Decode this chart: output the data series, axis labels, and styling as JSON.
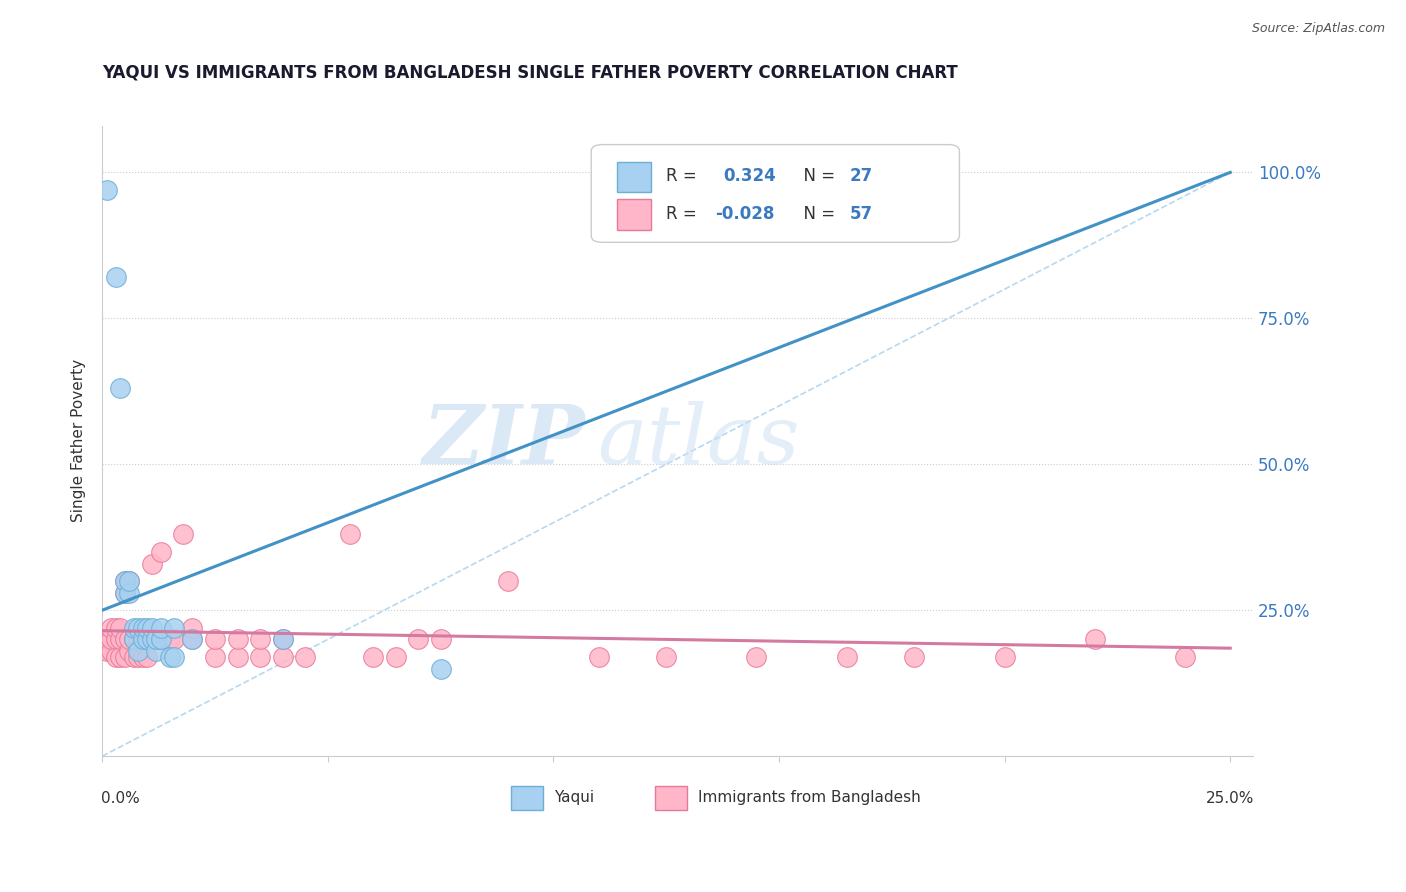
{
  "title": "YAQUI VS IMMIGRANTS FROM BANGLADESH SINGLE FATHER POVERTY CORRELATION CHART",
  "source": "Source: ZipAtlas.com",
  "ylabel": "Single Father Poverty",
  "watermark_zip": "ZIP",
  "watermark_atlas": "atlas",
  "blue_scatter_color": "#a8d0f0",
  "blue_scatter_edge": "#6baed6",
  "pink_scatter_color": "#ffb6c8",
  "pink_scatter_edge": "#e8799a",
  "blue_line_color": "#4292c6",
  "pink_line_color": "#d47aa0",
  "diag_line_color": "#b8d8f0",
  "yaqui_pts": [
    [
      0.001,
      0.97
    ],
    [
      0.003,
      0.82
    ],
    [
      0.004,
      0.63
    ],
    [
      0.005,
      0.28
    ],
    [
      0.005,
      0.3
    ],
    [
      0.006,
      0.28
    ],
    [
      0.006,
      0.3
    ],
    [
      0.007,
      0.2
    ],
    [
      0.007,
      0.22
    ],
    [
      0.008,
      0.18
    ],
    [
      0.008,
      0.22
    ],
    [
      0.009,
      0.2
    ],
    [
      0.009,
      0.22
    ],
    [
      0.01,
      0.2
    ],
    [
      0.01,
      0.22
    ],
    [
      0.011,
      0.2
    ],
    [
      0.011,
      0.22
    ],
    [
      0.012,
      0.18
    ],
    [
      0.012,
      0.2
    ],
    [
      0.013,
      0.2
    ],
    [
      0.013,
      0.22
    ],
    [
      0.015,
      0.17
    ],
    [
      0.016,
      0.17
    ],
    [
      0.016,
      0.22
    ],
    [
      0.02,
      0.2
    ],
    [
      0.04,
      0.2
    ],
    [
      0.075,
      0.15
    ]
  ],
  "bangladesh_pts": [
    [
      0.001,
      0.18
    ],
    [
      0.001,
      0.2
    ],
    [
      0.002,
      0.18
    ],
    [
      0.002,
      0.2
    ],
    [
      0.002,
      0.22
    ],
    [
      0.003,
      0.17
    ],
    [
      0.003,
      0.2
    ],
    [
      0.003,
      0.22
    ],
    [
      0.004,
      0.17
    ],
    [
      0.004,
      0.2
    ],
    [
      0.004,
      0.22
    ],
    [
      0.005,
      0.17
    ],
    [
      0.005,
      0.2
    ],
    [
      0.005,
      0.28
    ],
    [
      0.005,
      0.3
    ],
    [
      0.006,
      0.18
    ],
    [
      0.006,
      0.2
    ],
    [
      0.006,
      0.3
    ],
    [
      0.007,
      0.17
    ],
    [
      0.007,
      0.2
    ],
    [
      0.008,
      0.17
    ],
    [
      0.008,
      0.2
    ],
    [
      0.009,
      0.17
    ],
    [
      0.009,
      0.2
    ],
    [
      0.01,
      0.17
    ],
    [
      0.01,
      0.2
    ],
    [
      0.011,
      0.2
    ],
    [
      0.011,
      0.33
    ],
    [
      0.013,
      0.2
    ],
    [
      0.013,
      0.35
    ],
    [
      0.015,
      0.2
    ],
    [
      0.016,
      0.2
    ],
    [
      0.018,
      0.38
    ],
    [
      0.02,
      0.2
    ],
    [
      0.02,
      0.22
    ],
    [
      0.025,
      0.17
    ],
    [
      0.025,
      0.2
    ],
    [
      0.03,
      0.17
    ],
    [
      0.03,
      0.2
    ],
    [
      0.035,
      0.17
    ],
    [
      0.035,
      0.2
    ],
    [
      0.04,
      0.17
    ],
    [
      0.04,
      0.2
    ],
    [
      0.045,
      0.17
    ],
    [
      0.055,
      0.38
    ],
    [
      0.06,
      0.17
    ],
    [
      0.065,
      0.17
    ],
    [
      0.07,
      0.2
    ],
    [
      0.075,
      0.2
    ],
    [
      0.09,
      0.3
    ],
    [
      0.11,
      0.17
    ],
    [
      0.125,
      0.17
    ],
    [
      0.145,
      0.17
    ],
    [
      0.165,
      0.17
    ],
    [
      0.18,
      0.17
    ],
    [
      0.2,
      0.17
    ],
    [
      0.22,
      0.2
    ],
    [
      0.24,
      0.17
    ]
  ],
  "blue_line_x": [
    0.0,
    0.25
  ],
  "blue_line_y": [
    0.25,
    1.0
  ],
  "pink_line_x": [
    0.0,
    0.25
  ],
  "pink_line_y": [
    0.215,
    0.185
  ],
  "diag_line_x": [
    0.0,
    0.25
  ],
  "diag_line_y": [
    0.0,
    1.0
  ],
  "xlim": [
    0.0,
    0.255
  ],
  "ylim": [
    0.0,
    1.08
  ],
  "yticks": [
    0.0,
    0.25,
    0.5,
    0.75,
    1.0
  ],
  "ytick_labels_right": [
    "",
    "25.0%",
    "50.0%",
    "75.0%",
    "100.0%"
  ]
}
